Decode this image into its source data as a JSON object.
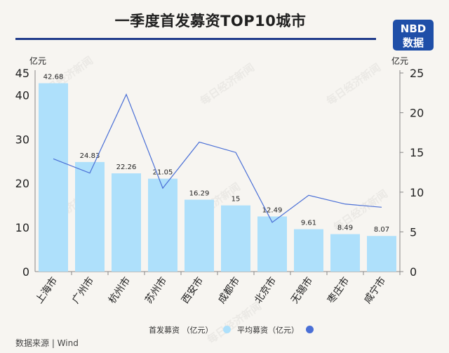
{
  "header": {
    "title": "一季度首发募资TOP10城市",
    "logo_line1": "NBD",
    "logo_line2": "数据"
  },
  "units": {
    "left": "亿元",
    "right": "亿元"
  },
  "footer": {
    "source": "数据来源 | Wind"
  },
  "watermark": "每日经济新闻",
  "legend": {
    "bar_label": "首发募资 （亿元）",
    "line_label": "平均募资（亿元）"
  },
  "colors": {
    "bar": "#aee0fb",
    "line": "#4a6fd6",
    "accent": "#1f3a8a",
    "logo_bg": "#1f4fa8"
  },
  "chart_data": {
    "type": "bar",
    "categories": [
      "上海市",
      "广州市",
      "杭州市",
      "苏州市",
      "西安市",
      "成都市",
      "北京市",
      "无锡市",
      "枣庄市",
      "咸宁市"
    ],
    "series": [
      {
        "name": "首发募资 （亿元）",
        "type": "bar",
        "axis": "left",
        "values": [
          42.68,
          24.83,
          22.26,
          21.05,
          16.29,
          15,
          12.49,
          9.61,
          8.49,
          8.07
        ],
        "value_labels": [
          "42.68",
          "24.83",
          "22.26",
          "21.05",
          "16.29",
          "15",
          "12.49",
          "9.61",
          "8.49",
          "8.07"
        ]
      },
      {
        "name": "平均募资（亿元）",
        "type": "line",
        "axis": "right",
        "values": [
          14.2,
          12.4,
          22.3,
          10.5,
          16.3,
          15.0,
          6.2,
          9.6,
          8.5,
          8.1
        ]
      }
    ],
    "y_left": {
      "min": 0,
      "max": 45,
      "ticks": [
        "0",
        "10",
        "20",
        "30",
        "40",
        "45"
      ],
      "tick_values": [
        0,
        10,
        20,
        30,
        40,
        45
      ]
    },
    "y_right": {
      "min": 0,
      "max": 25,
      "ticks": [
        "0",
        "5",
        "10",
        "15",
        "20",
        "25"
      ],
      "tick_values": [
        0,
        5,
        10,
        15,
        20,
        25
      ]
    },
    "grid": false
  }
}
